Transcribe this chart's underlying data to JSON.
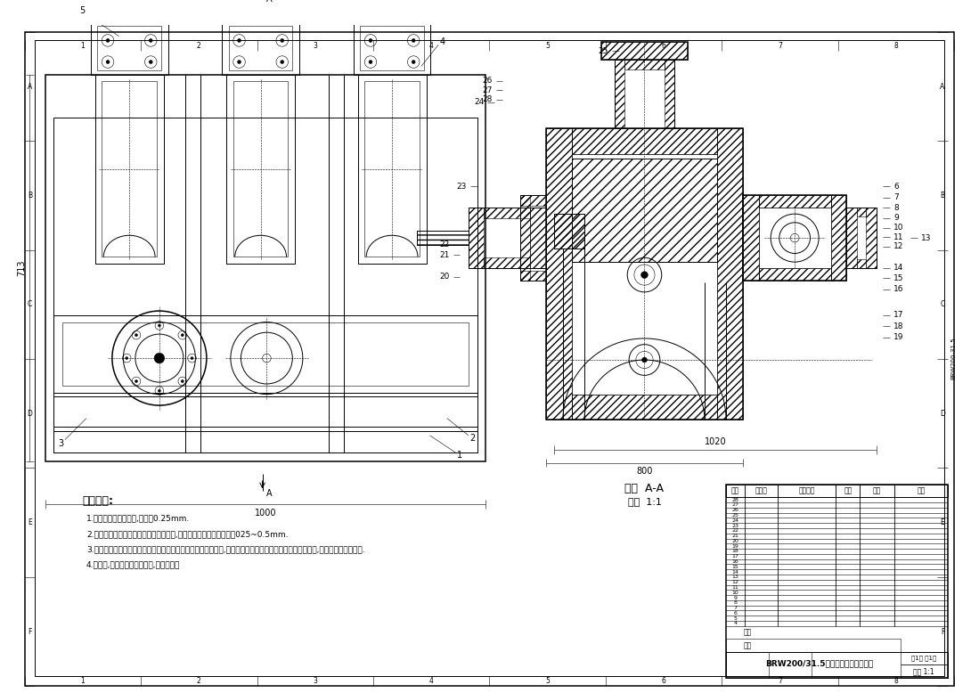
{
  "title": "BRW200/31.5乳化液泵的液力端设计",
  "scale_text": "比例 1:1",
  "section_label": "剖面 A-A",
  "bg_color": "#ffffff",
  "line_color": "#000000",
  "tech_notes_title": "技术要求:",
  "tech_notes": [
    "1.内外齿套采用游隙配,过盈量0.25mm.",
    "2.处须用螺号把网胶皮平面油压在阀体上,网胶皮横面比网体面约凸起025~0.5mm.",
    "3.盐音时喷淋冲卸采用水或用水为基本介质加入防锈剂的冲卸液,喷淋系统必须比乳化液泵先启动或同时启动,以免腐蚀循环和盐套.",
    "4.工作前,须在排出阀体内气体,检测密封性"
  ],
  "dim_1000": "1000",
  "dim_1020": "1020",
  "dim_800": "800",
  "dim_713": "713",
  "drawing_no": "BRW200/31.5乳化液泵的液力端设计",
  "page_info": "共1页 第1页"
}
